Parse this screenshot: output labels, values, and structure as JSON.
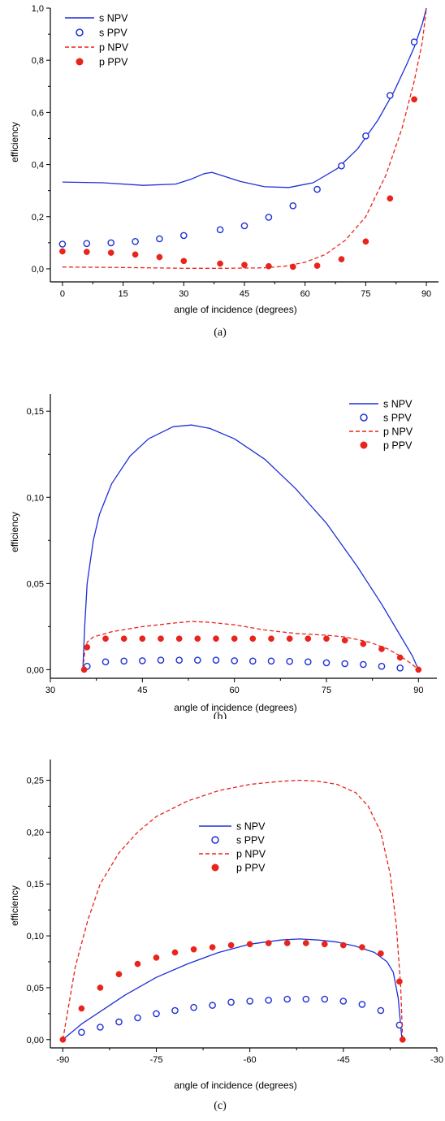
{
  "chart_data": [
    {
      "type": "line",
      "caption": "(a)",
      "xlabel": "angle of incidence (degrees)",
      "ylabel": "efficiency",
      "xlim": [
        -3,
        93
      ],
      "ylim": [
        -0.05,
        1.0
      ],
      "xticks": [
        0,
        15,
        30,
        45,
        60,
        75,
        90
      ],
      "xtick_labels": [
        "0",
        "15",
        "30",
        "45",
        "60",
        "75",
        "90"
      ],
      "yticks": [
        0.0,
        0.2,
        0.4,
        0.6,
        0.8,
        1.0
      ],
      "ytick_labels": [
        "0,0",
        "0,2",
        "0,4",
        "0,6",
        "0,8",
        "1,0"
      ],
      "legend_position": "top-left",
      "series": [
        {
          "name": "s NPV",
          "style": "solid-line",
          "color": "#1f2fd6",
          "x": [
            0,
            10,
            20,
            28,
            32,
            35,
            37,
            40,
            44,
            50,
            56,
            62,
            68,
            73,
            78,
            82,
            85,
            87,
            89,
            90
          ],
          "y": [
            0.333,
            0.33,
            0.32,
            0.325,
            0.345,
            0.365,
            0.37,
            0.355,
            0.335,
            0.315,
            0.312,
            0.33,
            0.385,
            0.46,
            0.57,
            0.68,
            0.78,
            0.85,
            0.94,
            1.0
          ]
        },
        {
          "name": "s PPV",
          "style": "open-circle",
          "color": "#1f2fd6",
          "x": [
            0,
            6,
            12,
            18,
            24,
            30,
            39,
            45,
            51,
            57,
            63,
            69,
            75,
            81,
            87
          ],
          "y": [
            0.095,
            0.097,
            0.1,
            0.105,
            0.115,
            0.128,
            0.15,
            0.165,
            0.198,
            0.242,
            0.305,
            0.395,
            0.51,
            0.665,
            0.87
          ]
        },
        {
          "name": "p NPV",
          "style": "dashed-line",
          "color": "#e8241c",
          "x": [
            0,
            15,
            30,
            40,
            50,
            55,
            60,
            65,
            70,
            75,
            80,
            84,
            87,
            89,
            90
          ],
          "y": [
            0.007,
            0.005,
            0.002,
            0.002,
            0.004,
            0.01,
            0.025,
            0.055,
            0.11,
            0.2,
            0.36,
            0.54,
            0.72,
            0.87,
            1.0
          ]
        },
        {
          "name": "p PPV",
          "style": "filled-circle",
          "color": "#e8241c",
          "x": [
            0,
            6,
            12,
            18,
            24,
            30,
            39,
            45,
            51,
            57,
            63,
            69,
            75,
            81,
            87
          ],
          "y": [
            0.067,
            0.065,
            0.062,
            0.055,
            0.045,
            0.03,
            0.02,
            0.015,
            0.01,
            0.008,
            0.012,
            0.037,
            0.105,
            0.27,
            0.65
          ]
        }
      ]
    },
    {
      "type": "line",
      "caption": "(b)",
      "xlabel": "angle of incidence (degrees)",
      "ylabel": "efficiency",
      "xlim": [
        30,
        93
      ],
      "ylim": [
        -0.005,
        0.16
      ],
      "xticks": [
        30,
        45,
        60,
        75,
        90
      ],
      "xtick_labels": [
        "30",
        "45",
        "60",
        "75",
        "90"
      ],
      "yticks": [
        0.0,
        0.05,
        0.1,
        0.15
      ],
      "ytick_labels": [
        "0,00",
        "0,05",
        "0,10",
        "0,15"
      ],
      "legend_position": "top-right",
      "series": [
        {
          "name": "s NPV",
          "style": "solid-line",
          "color": "#1f2fd6",
          "x": [
            35.3,
            35.6,
            36,
            37,
            38,
            40,
            43,
            46,
            50,
            53,
            56,
            60,
            65,
            70,
            75,
            80,
            84,
            87,
            89,
            90
          ],
          "y": [
            0,
            0.025,
            0.05,
            0.075,
            0.09,
            0.108,
            0.124,
            0.134,
            0.141,
            0.142,
            0.14,
            0.134,
            0.122,
            0.105,
            0.085,
            0.06,
            0.038,
            0.02,
            0.008,
            0
          ]
        },
        {
          "name": "s PPV",
          "style": "open-circle",
          "color": "#1f2fd6",
          "x": [
            36,
            39,
            42,
            45,
            48,
            51,
            54,
            57,
            60,
            63,
            66,
            69,
            72,
            75,
            78,
            81,
            84,
            87
          ],
          "y": [
            0.002,
            0.0045,
            0.005,
            0.0052,
            0.0055,
            0.0055,
            0.0055,
            0.0055,
            0.0052,
            0.005,
            0.005,
            0.0048,
            0.0045,
            0.004,
            0.0035,
            0.003,
            0.002,
            0.001
          ]
        },
        {
          "name": "p NPV",
          "style": "dashed-line",
          "color": "#e8241c",
          "x": [
            35.3,
            35.6,
            36,
            37,
            40,
            45,
            50,
            53,
            56,
            60,
            65,
            70,
            75,
            78,
            82,
            85,
            87,
            89,
            90
          ],
          "y": [
            0,
            0.01,
            0.016,
            0.019,
            0.022,
            0.025,
            0.027,
            0.028,
            0.0275,
            0.026,
            0.023,
            0.021,
            0.02,
            0.019,
            0.016,
            0.012,
            0.008,
            0.003,
            0
          ]
        },
        {
          "name": "p PPV",
          "style": "filled-circle",
          "color": "#e8241c",
          "x": [
            35.5,
            36,
            39,
            42,
            45,
            48,
            51,
            54,
            57,
            60,
            63,
            66,
            69,
            72,
            75,
            78,
            81,
            84,
            87,
            90
          ],
          "y": [
            0,
            0.013,
            0.018,
            0.018,
            0.018,
            0.018,
            0.018,
            0.018,
            0.018,
            0.018,
            0.018,
            0.018,
            0.018,
            0.018,
            0.018,
            0.017,
            0.015,
            0.012,
            0.007,
            0
          ]
        }
      ]
    },
    {
      "type": "line",
      "caption": "(c)",
      "xlabel": "angle of incidence (degrees)",
      "ylabel": "efficiency",
      "xlim": [
        -92,
        -30
      ],
      "ylim": [
        -0.008,
        0.27
      ],
      "xticks": [
        -90,
        -75,
        -60,
        -45,
        -30
      ],
      "xtick_labels": [
        "-90",
        "-75",
        "-60",
        "-45",
        "-30"
      ],
      "yticks": [
        0.0,
        0.05,
        0.1,
        0.15,
        0.2,
        0.25
      ],
      "ytick_labels": [
        "0,00",
        "0,05",
        "0,10",
        "0,15",
        "0,20",
        "0,25"
      ],
      "legend_position": "center",
      "series": [
        {
          "name": "s NPV",
          "style": "solid-line",
          "color": "#1f2fd6",
          "x": [
            -90,
            -87,
            -84,
            -80,
            -75,
            -70,
            -65,
            -60,
            -55,
            -52,
            -49,
            -46,
            -43,
            -40,
            -38,
            -37,
            -36.2,
            -35.6
          ],
          "y": [
            0,
            0.015,
            0.027,
            0.043,
            0.06,
            0.073,
            0.084,
            0.092,
            0.096,
            0.097,
            0.096,
            0.094,
            0.09,
            0.084,
            0.075,
            0.065,
            0.04,
            0
          ]
        },
        {
          "name": "s PPV",
          "style": "open-circle",
          "color": "#1f2fd6",
          "x": [
            -87,
            -84,
            -81,
            -78,
            -75,
            -72,
            -69,
            -66,
            -63,
            -60,
            -57,
            -54,
            -51,
            -48,
            -45,
            -42,
            -39,
            -36
          ],
          "y": [
            0.007,
            0.012,
            0.017,
            0.021,
            0.025,
            0.028,
            0.031,
            0.033,
            0.036,
            0.037,
            0.038,
            0.039,
            0.039,
            0.039,
            0.037,
            0.034,
            0.028,
            0.014
          ]
        },
        {
          "name": "p NPV",
          "style": "dashed-line",
          "color": "#e8241c",
          "x": [
            -90,
            -88,
            -86,
            -84,
            -81,
            -78,
            -75,
            -70,
            -65,
            -60,
            -55,
            -52,
            -49,
            -46,
            -43,
            -41,
            -39,
            -37.5,
            -36.5,
            -35.8,
            -35.5
          ],
          "y": [
            0,
            0.07,
            0.115,
            0.15,
            0.18,
            0.2,
            0.215,
            0.23,
            0.24,
            0.246,
            0.249,
            0.25,
            0.249,
            0.246,
            0.238,
            0.225,
            0.2,
            0.16,
            0.11,
            0.05,
            0
          ]
        },
        {
          "name": "p PPV",
          "style": "filled-circle",
          "color": "#e8241c",
          "x": [
            -90,
            -87,
            -84,
            -81,
            -78,
            -75,
            -72,
            -69,
            -66,
            -63,
            -60,
            -57,
            -54,
            -51,
            -48,
            -45,
            -42,
            -39,
            -36,
            -35.5
          ],
          "y": [
            0,
            0.03,
            0.05,
            0.063,
            0.073,
            0.079,
            0.084,
            0.087,
            0.089,
            0.091,
            0.092,
            0.093,
            0.093,
            0.093,
            0.092,
            0.091,
            0.089,
            0.083,
            0.056,
            0
          ]
        }
      ]
    }
  ]
}
